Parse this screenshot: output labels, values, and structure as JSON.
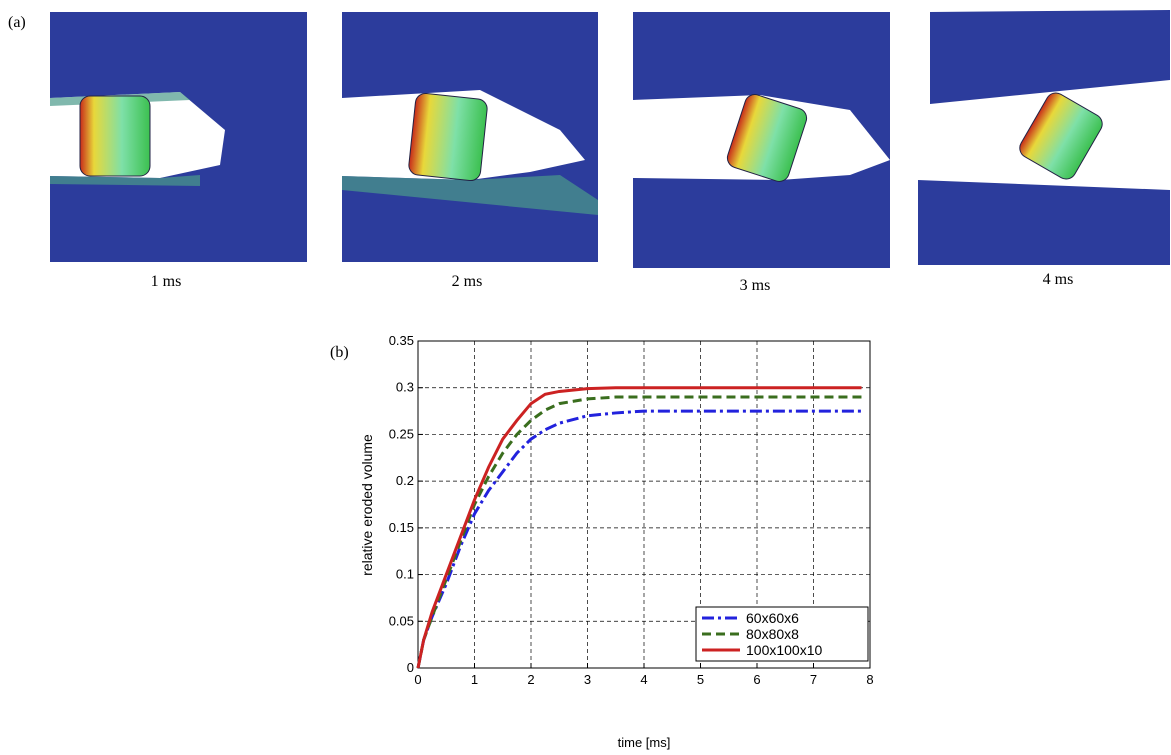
{
  "panel_a": {
    "label": "(a)",
    "captions": [
      "1 ms",
      "2 ms",
      "3 ms",
      "4 ms"
    ]
  },
  "chart_data": {
    "type": "line",
    "label": "(b)",
    "x_label": "time [ms]",
    "y_label": "relative eroded volume",
    "x": [
      0,
      0.1,
      0.25,
      0.5,
      0.75,
      1,
      1.25,
      1.5,
      1.75,
      2,
      2.25,
      2.5,
      3,
      3.5,
      4,
      5,
      6,
      7,
      7.85
    ],
    "series": [
      {
        "name": "60x60x6",
        "color": "#2222dd",
        "dash": "dashdot",
        "values": [
          0,
          0.03,
          0.055,
          0.09,
          0.13,
          0.165,
          0.19,
          0.21,
          0.23,
          0.245,
          0.255,
          0.262,
          0.27,
          0.273,
          0.275,
          0.275,
          0.275,
          0.275,
          0.275
        ]
      },
      {
        "name": "80x80x8",
        "color": "#3a6e1e",
        "dash": "dashed",
        "values": [
          0,
          0.03,
          0.055,
          0.095,
          0.135,
          0.175,
          0.205,
          0.23,
          0.25,
          0.265,
          0.276,
          0.283,
          0.288,
          0.29,
          0.29,
          0.29,
          0.29,
          0.29,
          0.29
        ]
      },
      {
        "name": "100x100x10",
        "color": "#cc2222",
        "dash": "solid",
        "values": [
          0,
          0.03,
          0.06,
          0.1,
          0.14,
          0.18,
          0.215,
          0.245,
          0.265,
          0.283,
          0.293,
          0.296,
          0.299,
          0.3,
          0.3,
          0.3,
          0.3,
          0.3,
          0.3
        ]
      }
    ],
    "xlim": [
      0,
      8
    ],
    "xticks": [
      0,
      1,
      2,
      3,
      4,
      5,
      6,
      7,
      8
    ],
    "ylim": [
      0,
      0.35
    ],
    "yticks": [
      0,
      0.05,
      0.1,
      0.15,
      0.2,
      0.25,
      0.3,
      0.35
    ],
    "grid": true,
    "legend": "lower right"
  }
}
